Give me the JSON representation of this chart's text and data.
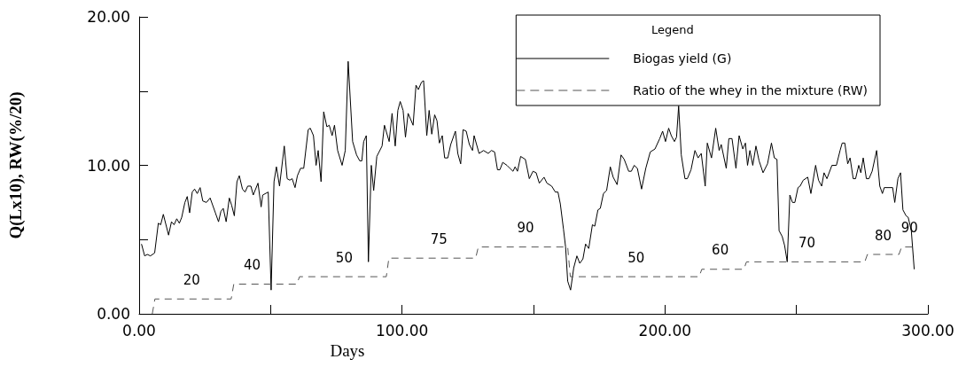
{
  "chart_data": {
    "type": "line",
    "xlabel": "Days",
    "ylabel": "Q(Lx10), RW(%/20)",
    "legend_title": "Legend",
    "legend": "top right",
    "grid": false,
    "marker": "none",
    "xlim": [
      0,
      300
    ],
    "xticks": [
      {
        "value": 0,
        "label": "0.00"
      },
      {
        "value": 50,
        "label": null
      },
      {
        "value": 100,
        "label": "100.00"
      },
      {
        "value": 150,
        "label": null
      },
      {
        "value": 200,
        "label": "200.00"
      },
      {
        "value": 250,
        "label": null
      },
      {
        "value": 300,
        "label": "300.00"
      }
    ],
    "ylim": [
      0,
      20
    ],
    "yticks": [
      {
        "value": 0,
        "label": "0.00"
      },
      {
        "value": 5,
        "label": null
      },
      {
        "value": 10,
        "label": "10.00"
      },
      {
        "value": 15,
        "label": null
      },
      {
        "value": 20,
        "label": "20.00"
      }
    ],
    "series": [
      {
        "name": "Biogas yield (G)",
        "color": "#000000",
        "line_style": "solid",
        "x": [
          0.9,
          2.1,
          3.1,
          4.3,
          5.9,
          7.3,
          8.2,
          9.2,
          11.2,
          12.3,
          13.3,
          14.3,
          15.3,
          16.2,
          17.4,
          18.3,
          19.2,
          20.2,
          21.1,
          22.1,
          23.2,
          24.2,
          25.6,
          27,
          29,
          30.2,
          31.1,
          32,
          33.1,
          34.3,
          35.2,
          36.2,
          37.2,
          38.1,
          39.3,
          40.3,
          41.3,
          42.5,
          43.4,
          45.2,
          46.4,
          47,
          49.1,
          50.2,
          51.3,
          52.2,
          53.4,
          55.2,
          56.3,
          57.3,
          58.2,
          59.3,
          60.2,
          61.4,
          62.6,
          64.3,
          65.1,
          66.3,
          67.3,
          68.1,
          69.2,
          70.2,
          71.4,
          72.3,
          73.4,
          74.3,
          75.5,
          77.2,
          78.4,
          79.5,
          81.2,
          82.7,
          83.9,
          84.7,
          85.4,
          86.4,
          87.2,
          88.3,
          89.2,
          90.4,
          92.4,
          93.3,
          95.1,
          96.2,
          97.4,
          98.4,
          99.3,
          100.4,
          101.3,
          102.3,
          104.2,
          105.3,
          106.2,
          107.4,
          108.2,
          109.4,
          110.3,
          111.3,
          112.4,
          113.3,
          114.2,
          115.3,
          116.2,
          117.4,
          118.5,
          120.3,
          121.2,
          122.3,
          123.2,
          124.4,
          125.6,
          126.8,
          127.4,
          129.3,
          131,
          132.8,
          134,
          135.2,
          136.3,
          137.2,
          138.3,
          139.9,
          141,
          142.2,
          143,
          143.9,
          145.1,
          146.9,
          148.4,
          149.8,
          151,
          152.2,
          154,
          155.1,
          156.9,
          158.3,
          159.3,
          160.2,
          161.4,
          162.2,
          163,
          164.1,
          165.3,
          166.5,
          167.6,
          168.8,
          169.8,
          171,
          172.4,
          173.3,
          174.5,
          175.4,
          176.6,
          177.8,
          179.2,
          180.3,
          181.8,
          183.3,
          184.5,
          186.2,
          187.2,
          188.3,
          189.5,
          191.1,
          192.7,
          194.4,
          196.2,
          198,
          199.1,
          200.2,
          201.4,
          202.4,
          203.6,
          204.4,
          205.2,
          206.2,
          207.6,
          208.5,
          209.9,
          211.4,
          212.6,
          213.8,
          215.3,
          216.1,
          217.7,
          219.3,
          220.6,
          221.4,
          223.3,
          224.3,
          225.5,
          227,
          228.2,
          229.6,
          230.6,
          231.4,
          232.3,
          233.4,
          234.6,
          235.8,
          237.3,
          239,
          240.5,
          241.6,
          242.6,
          243.4,
          244.6,
          245.5,
          246.5,
          247.5,
          248.5,
          249.4,
          250.6,
          251.4,
          252.6,
          254.3,
          255.5,
          257.3,
          258.4,
          259.6,
          260.5,
          261.6,
          263.5,
          265.2,
          266.6,
          267.4,
          268.4,
          269.5,
          270.4,
          271.6,
          272.5,
          273.7,
          274.5,
          275.4,
          276.6,
          277.6,
          278.8,
          280.5,
          281.7,
          282.7,
          283.4,
          286.6,
          287.4,
          288.6,
          289.6,
          290.5,
          291.7,
          292.5,
          293.7,
          294.8
        ],
        "values": [
          4.7,
          3.9,
          4.0,
          3.9,
          4.1,
          6.1,
          6.0,
          6.7,
          5.3,
          6.2,
          6.0,
          6.4,
          6.1,
          6.5,
          7.5,
          7.9,
          6.8,
          8.2,
          8.4,
          8.1,
          8.5,
          7.6,
          7.5,
          7.8,
          6.8,
          6.2,
          6.9,
          7.1,
          6.2,
          7.8,
          7.3,
          6.6,
          8.9,
          9.3,
          8.4,
          8.2,
          8.6,
          8.6,
          8.0,
          8.8,
          7.2,
          8.0,
          8.2,
          1.6,
          8.9,
          9.9,
          8.6,
          11.3,
          9.1,
          9.0,
          9.1,
          8.5,
          9.3,
          9.8,
          9.8,
          12.4,
          12.5,
          12.0,
          10.0,
          11.0,
          8.9,
          13.6,
          12.6,
          12.7,
          12.0,
          12.7,
          11.0,
          10.0,
          11.0,
          17.0,
          11.6,
          10.7,
          10.3,
          10.3,
          11.6,
          12.0,
          3.5,
          10.0,
          8.3,
          10.6,
          11.3,
          12.7,
          11.6,
          13.5,
          11.3,
          13.7,
          14.3,
          13.7,
          11.9,
          13.5,
          12.7,
          15.4,
          15.1,
          15.6,
          15.7,
          12.0,
          13.7,
          12.1,
          13.4,
          13.0,
          11.5,
          12.0,
          10.5,
          10.5,
          11.4,
          12.3,
          10.8,
          10.1,
          12.4,
          12.3,
          11.4,
          11.0,
          12.0,
          10.8,
          11.0,
          10.8,
          11.0,
          10.9,
          9.7,
          9.7,
          10.2,
          10.0,
          9.8,
          9.6,
          9.9,
          9.6,
          10.6,
          10.4,
          9.1,
          9.6,
          9.5,
          8.8,
          9.2,
          8.8,
          8.6,
          8.2,
          8.2,
          7.4,
          5.7,
          4.5,
          2.2,
          1.6,
          3.1,
          3.9,
          3.4,
          3.7,
          4.7,
          4.4,
          6.0,
          5.9,
          7.0,
          7.1,
          8.1,
          8.3,
          9.9,
          9.2,
          8.7,
          10.7,
          10.4,
          9.6,
          9.6,
          10.0,
          9.8,
          8.4,
          9.8,
          10.9,
          11.1,
          11.8,
          12.3,
          11.6,
          12.5,
          12.0,
          11.6,
          11.9,
          14.0,
          10.7,
          9.1,
          9.1,
          9.7,
          11.0,
          10.5,
          10.8,
          8.6,
          11.5,
          10.5,
          12.5,
          11.0,
          11.4,
          9.8,
          11.8,
          11.8,
          9.8,
          12.0,
          11.1,
          11.5,
          10.0,
          11.0,
          10.0,
          11.3,
          10.3,
          9.5,
          10.1,
          11.5,
          10.5,
          10.4,
          5.6,
          5.2,
          4.6,
          3.5,
          8.0,
          7.5,
          7.5,
          8.5,
          8.6,
          9.0,
          9.2,
          8.1,
          10.0,
          9.0,
          8.6,
          9.5,
          9.1,
          10.0,
          10.0,
          11.0,
          11.5,
          11.5,
          10.1,
          10.5,
          9.1,
          9.1,
          10.0,
          9.5,
          10.5,
          9.1,
          9.1,
          9.6,
          11.0,
          8.6,
          8.1,
          8.5,
          8.5,
          7.5,
          9.1,
          9.5,
          7.0,
          6.6,
          6.5,
          5.6,
          3.0
        ]
      },
      {
        "name": "Ratio of the whey in the mixture (RW)",
        "color": "#555555",
        "line_style": "dashed",
        "x": [
          5,
          6,
          35,
          36,
          60,
          61,
          94,
          95,
          128,
          129,
          163,
          164,
          213,
          214,
          230,
          231,
          276,
          277,
          289,
          290,
          294
        ],
        "values": [
          0,
          1,
          1,
          2,
          2,
          2.5,
          2.5,
          3.75,
          3.75,
          4.5,
          4.5,
          2.5,
          2.5,
          3,
          3,
          3.5,
          3.5,
          4,
          4,
          4.5,
          4.5
        ]
      }
    ],
    "annotations": [
      {
        "text": "20",
        "x": 20,
        "y": 1
      },
      {
        "text": "40",
        "x": 43,
        "y": 2
      },
      {
        "text": "50",
        "x": 78,
        "y": 2.5
      },
      {
        "text": "75",
        "x": 114,
        "y": 3.75
      },
      {
        "text": "90",
        "x": 147,
        "y": 4.5
      },
      {
        "text": "50",
        "x": 189,
        "y": 2.5
      },
      {
        "text": "60",
        "x": 221,
        "y": 3
      },
      {
        "text": "70",
        "x": 254,
        "y": 3.5
      },
      {
        "text": "80",
        "x": 283,
        "y": 4
      },
      {
        "text": "90",
        "x": 293,
        "y": 4.5
      }
    ]
  }
}
